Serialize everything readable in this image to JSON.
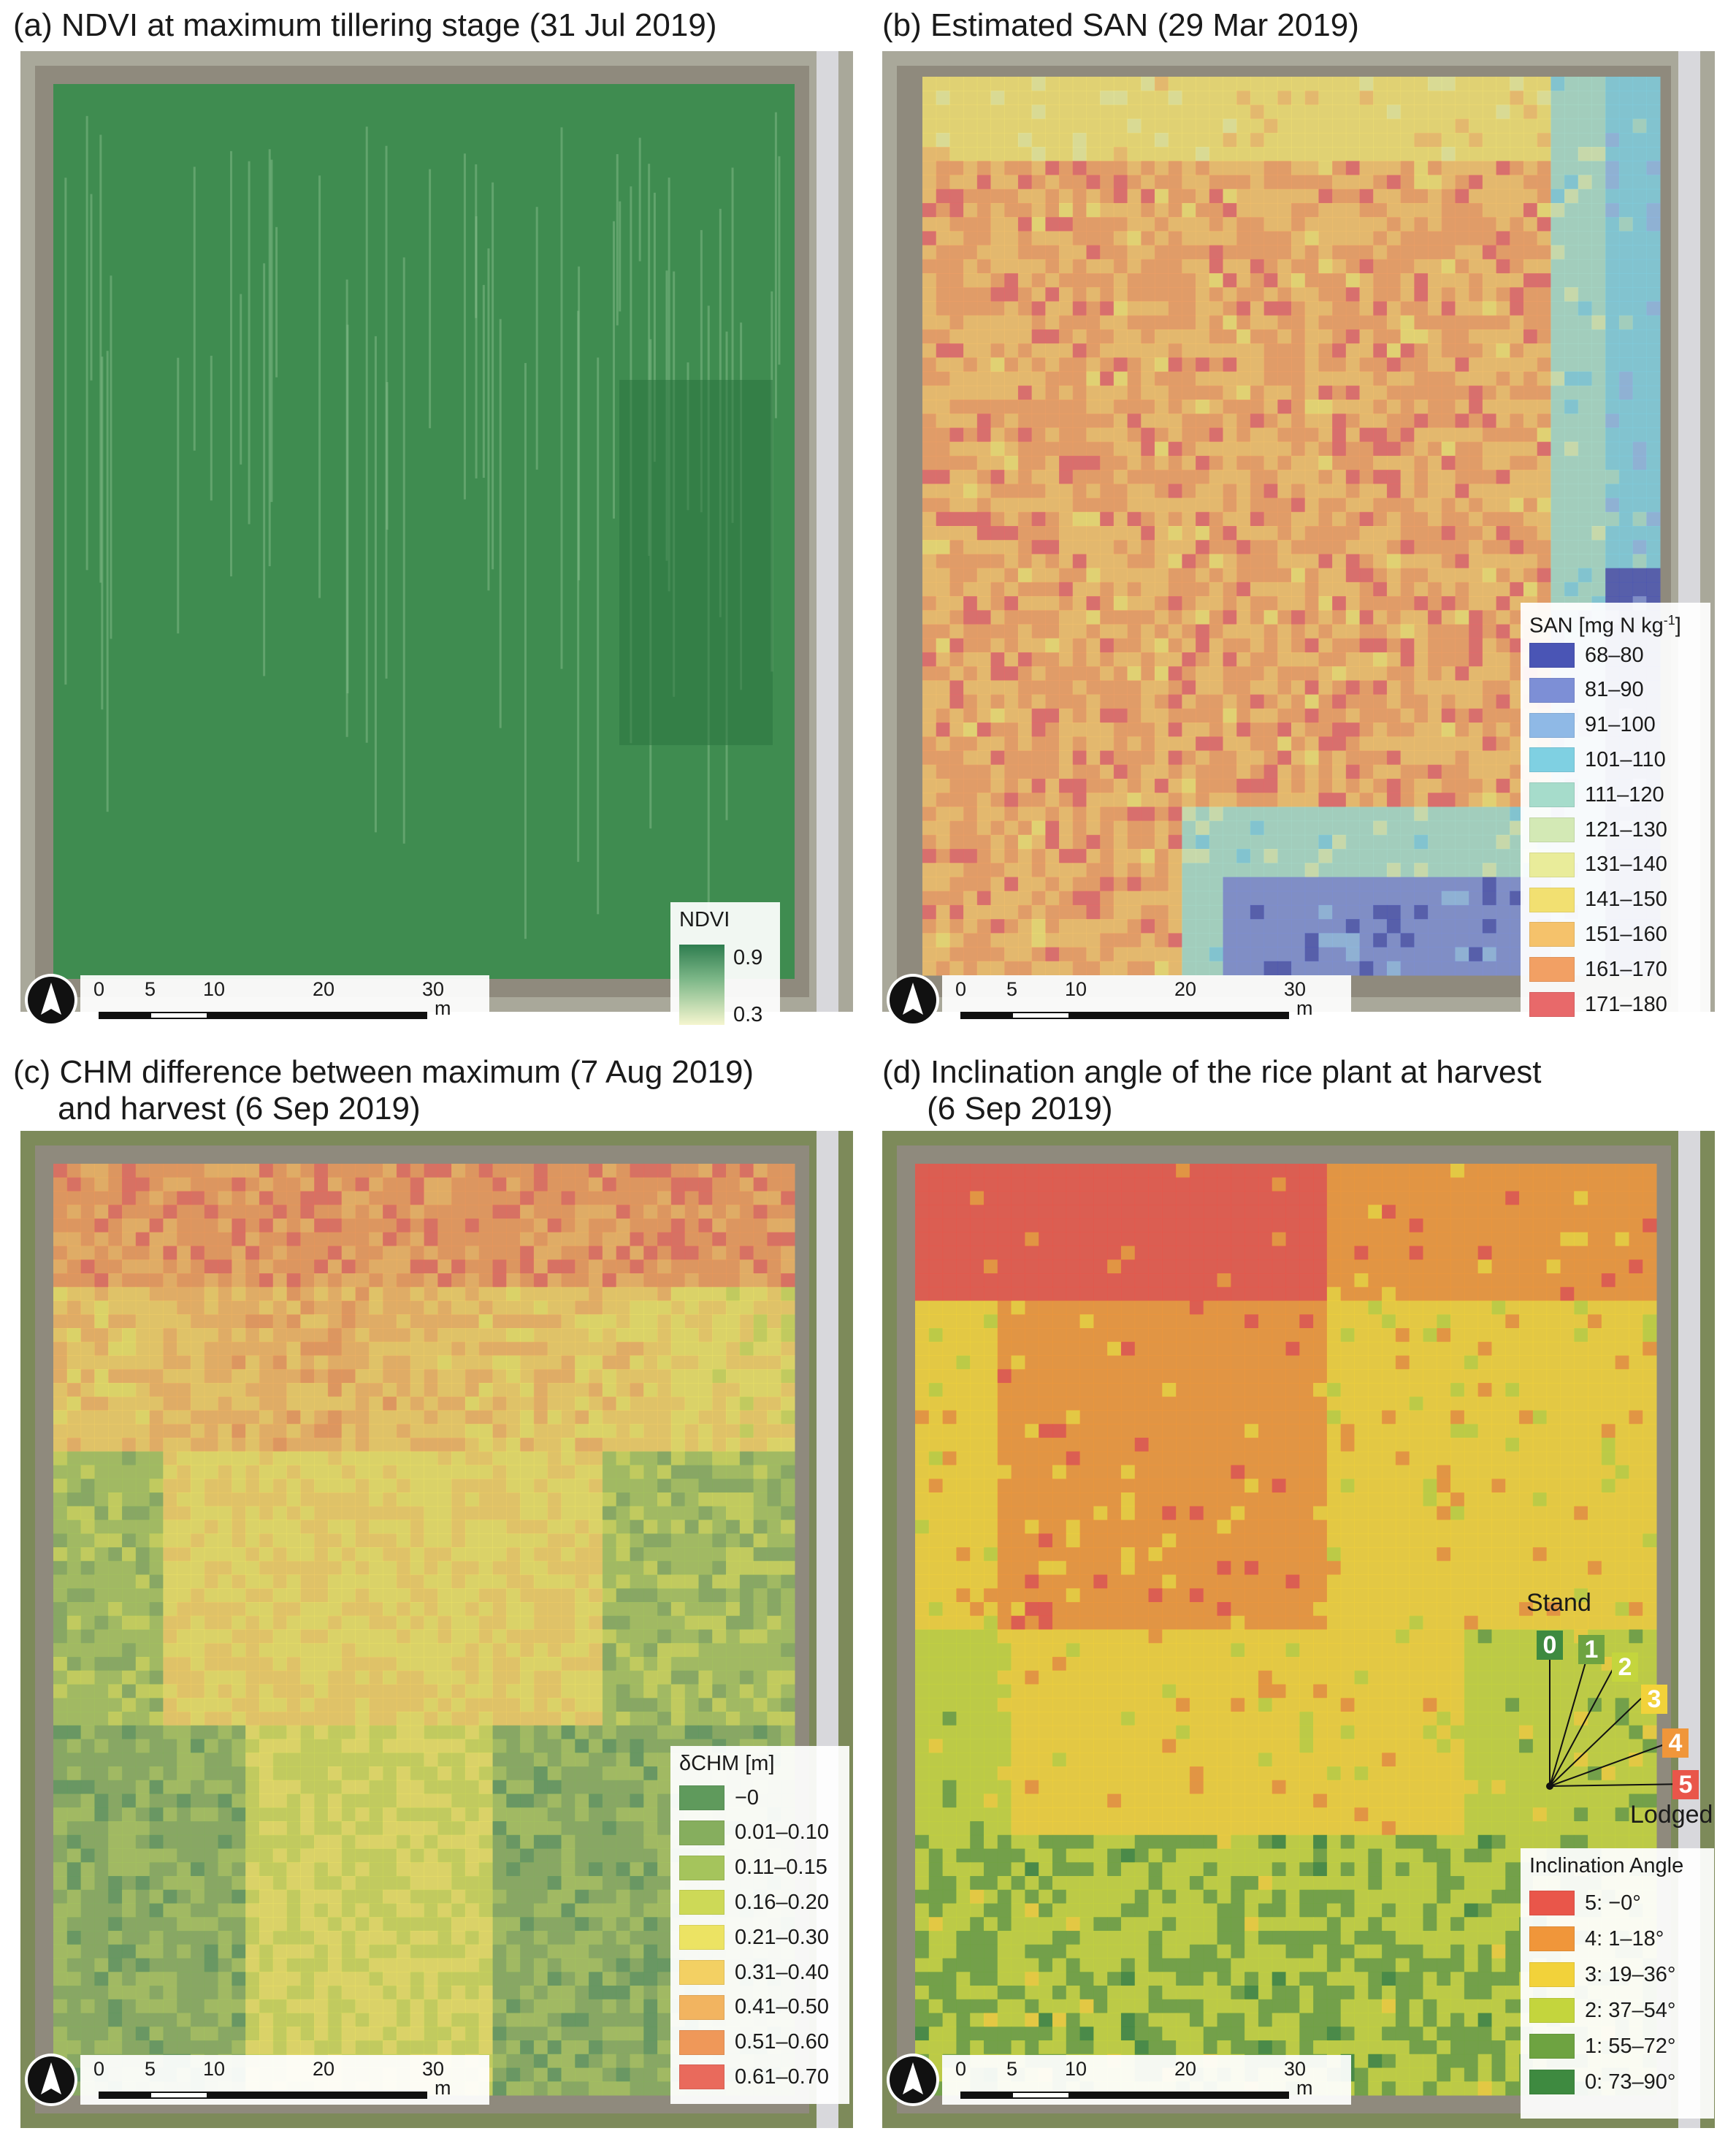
{
  "panels": {
    "a": {
      "title": "(a) NDVI at maximum tillering stage (31 Jul 2019)",
      "legend": {
        "title": "NDVI",
        "max_label": "0.9",
        "min_label": "0.3"
      }
    },
    "b": {
      "title": "(b) Estimated SAN (29 Mar 2019)",
      "legend": {
        "title": "SAN [mg N kg",
        "title_sup": "-1",
        "title_end": "]",
        "classes": [
          {
            "label": "68–80",
            "color": "#4a55b5"
          },
          {
            "label": "81–90",
            "color": "#7d8fd6"
          },
          {
            "label": "91–100",
            "color": "#8fb9e6"
          },
          {
            "label": "101–110",
            "color": "#7fd0e2"
          },
          {
            "label": "111–120",
            "color": "#a6dccb"
          },
          {
            "label": "121–130",
            "color": "#d3e9b5"
          },
          {
            "label": "131–140",
            "color": "#e9ec9a"
          },
          {
            "label": "141–150",
            "color": "#f2e071"
          },
          {
            "label": "151–160",
            "color": "#f5c26b"
          },
          {
            "label": "161–170",
            "color": "#f2a064"
          },
          {
            "label": "171–180",
            "color": "#e8696a"
          }
        ]
      }
    },
    "c": {
      "title": "(c) CHM difference between maximum (7 Aug 2019)\n     and harvest (6 Sep 2019)",
      "legend": {
        "title": "δCHM [m]",
        "classes": [
          {
            "label": "−0",
            "color": "#5f9a5c"
          },
          {
            "label": "0.01–0.10",
            "color": "#86ae5e"
          },
          {
            "label": "0.11–0.15",
            "color": "#a5c45c"
          },
          {
            "label": "0.16–0.20",
            "color": "#cdd957"
          },
          {
            "label": "0.21–0.30",
            "color": "#ece363"
          },
          {
            "label": "0.31–0.40",
            "color": "#f3d063"
          },
          {
            "label": "0.41–0.50",
            "color": "#f2b460"
          },
          {
            "label": "0.51–0.60",
            "color": "#ef9859"
          },
          {
            "label": "0.61–0.70",
            "color": "#e96a5c"
          }
        ]
      }
    },
    "d": {
      "title": "(d) Inclination angle of the rice plant at harvest\n     (6 Sep 2019)",
      "diagram": {
        "top_label": "Stand",
        "bottom_label": "Lodged",
        "levels": [
          {
            "num": "0",
            "color": "#3e8a40"
          },
          {
            "num": "1",
            "color": "#6ea341"
          },
          {
            "num": "2",
            "color": "#c4d53d"
          },
          {
            "num": "3",
            "color": "#f2d23a"
          },
          {
            "num": "4",
            "color": "#f0963a"
          },
          {
            "num": "5",
            "color": "#e9564a"
          }
        ]
      },
      "legend": {
        "title": "Inclination Angle",
        "classes": [
          {
            "label": "5: −0°",
            "color": "#e9564a"
          },
          {
            "label": "4: 1–18°",
            "color": "#f0963a"
          },
          {
            "label": "3: 19–36°",
            "color": "#f2d23a"
          },
          {
            "label": "2: 37–54°",
            "color": "#c4d53d"
          },
          {
            "label": "1: 55–72°",
            "color": "#6ea341"
          },
          {
            "label": "0: 73–90°",
            "color": "#3e8a40"
          }
        ]
      }
    }
  },
  "scalebar": {
    "ticks": [
      "0",
      "5",
      "10",
      "20",
      "30"
    ],
    "unit": "m"
  }
}
